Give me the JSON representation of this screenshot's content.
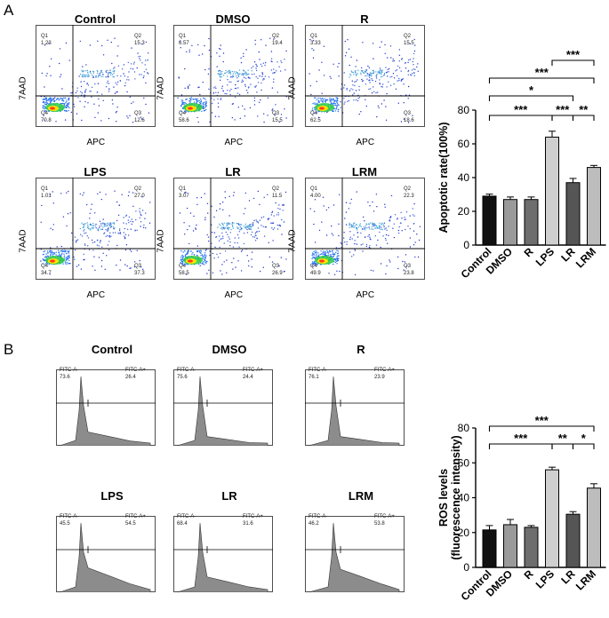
{
  "panels": {
    "a": "A",
    "b": "B"
  },
  "flow": [
    {
      "title": "Control",
      "q1": "Q1",
      "q1v": "1.23",
      "q2": "Q2",
      "q2v": "15.3",
      "q3": "Q3",
      "q3v": "12.6",
      "q4": "Q4",
      "q4v": "70.8"
    },
    {
      "title": "DMSO",
      "q1": "Q1",
      "q1v": "6.57",
      "q2": "Q2",
      "q2v": "19.4",
      "q3": "Q3",
      "q3v": "15.5",
      "q4": "Q4",
      "q4v": "58.6"
    },
    {
      "title": "R",
      "q1": "Q1",
      "q1v": "3.33",
      "q2": "Q2",
      "q2v": "15.5",
      "q3": "Q3",
      "q3v": "18.6",
      "q4": "Q4",
      "q4v": "62.5"
    },
    {
      "title": "LPS",
      "q1": "Q1",
      "q1v": "1.01",
      "q2": "Q2",
      "q2v": "27.0",
      "q3": "Q3",
      "q3v": "37.3",
      "q4": "Q4",
      "q4v": "34.7"
    },
    {
      "title": "LR",
      "q1": "Q1",
      "q1v": "3.07",
      "q2": "Q2",
      "q2v": "11.5",
      "q3": "Q3",
      "q3v": "26.9",
      "q4": "Q4",
      "q4v": "58.5"
    },
    {
      "title": "LRM",
      "q1": "Q1",
      "q1v": "4.00",
      "q2": "Q2",
      "q2v": "22.3",
      "q3": "Q3",
      "q3v": "23.8",
      "q4": "Q4",
      "q4v": "49.9"
    }
  ],
  "flow_axes": {
    "x": "APC",
    "y": "7AAD"
  },
  "hist": [
    {
      "title": "Control",
      "neg": "FITC-A-",
      "negv": "73.6",
      "pos": "FITC-A+",
      "posv": "26.4"
    },
    {
      "title": "DMSO",
      "neg": "FITC-A-",
      "negv": "75.6",
      "pos": "FITC-A+",
      "posv": "24.4"
    },
    {
      "title": "R",
      "neg": "FITC-A-",
      "negv": "76.1",
      "pos": "FITC-A+",
      "posv": "23.9"
    },
    {
      "title": "LPS",
      "neg": "FITC-A-",
      "negv": "45.5",
      "pos": "FITC-A+",
      "posv": "54.5"
    },
    {
      "title": "LR",
      "neg": "FITC-A-",
      "negv": "68.4",
      "pos": "FITC-A+",
      "posv": "31.6"
    },
    {
      "title": "LRM",
      "neg": "FITC-A-",
      "negv": "46.2",
      "pos": "FITC-A+",
      "posv": "53.8"
    }
  ],
  "colors": {
    "c1": "#111111",
    "c2": "#9a9a9a",
    "c3": "#6e6e6e",
    "c4": "#cfcfcf",
    "c5": "#555555",
    "c6": "#bdbdbd"
  },
  "chart_data": [
    {
      "type": "bar",
      "title": "",
      "xlabel": "",
      "ylabel": "Apoptotic rate(100%)",
      "categories": [
        "Control",
        "DMSO",
        "R",
        "LPS",
        "LR",
        "LRM"
      ],
      "values": [
        29,
        27,
        27,
        64,
        37,
        46
      ],
      "errors": [
        1.2,
        1.5,
        1.5,
        3.5,
        2.5,
        1.2
      ],
      "ylim": [
        0,
        80
      ],
      "yticks": [
        "0",
        "20",
        "40",
        "60",
        "80"
      ],
      "significance": [
        {
          "from": "Control",
          "to": "LPS",
          "label": "***"
        },
        {
          "from": "LPS",
          "to": "LR",
          "label": "***"
        },
        {
          "from": "LR",
          "to": "LRM",
          "label": "**"
        },
        {
          "from": "Control",
          "to": "LR",
          "label": "*"
        },
        {
          "from": "Control",
          "to": "LRM",
          "label": "***"
        },
        {
          "from": "LPS",
          "to": "LRM",
          "label": "***"
        }
      ]
    },
    {
      "type": "bar",
      "title": "",
      "xlabel": "",
      "ylabel": "ROS levels",
      "ylabel2": "(fluorescence intensity)",
      "categories": [
        "Control",
        "DMSO",
        "R",
        "LPS",
        "LR",
        "LRM"
      ],
      "values": [
        21.5,
        24.5,
        23,
        56,
        30.5,
        45.5
      ],
      "errors": [
        2.5,
        3,
        1,
        1.5,
        1.5,
        2.5
      ],
      "ylim": [
        0,
        80
      ],
      "yticks": [
        "0",
        "20",
        "40",
        "60",
        "80"
      ],
      "significance": [
        {
          "from": "Control",
          "to": "LPS",
          "label": "***"
        },
        {
          "from": "LPS",
          "to": "LR",
          "label": "**"
        },
        {
          "from": "LR",
          "to": "LRM",
          "label": "*"
        },
        {
          "from": "Control",
          "to": "LRM",
          "label": "***"
        }
      ]
    }
  ]
}
